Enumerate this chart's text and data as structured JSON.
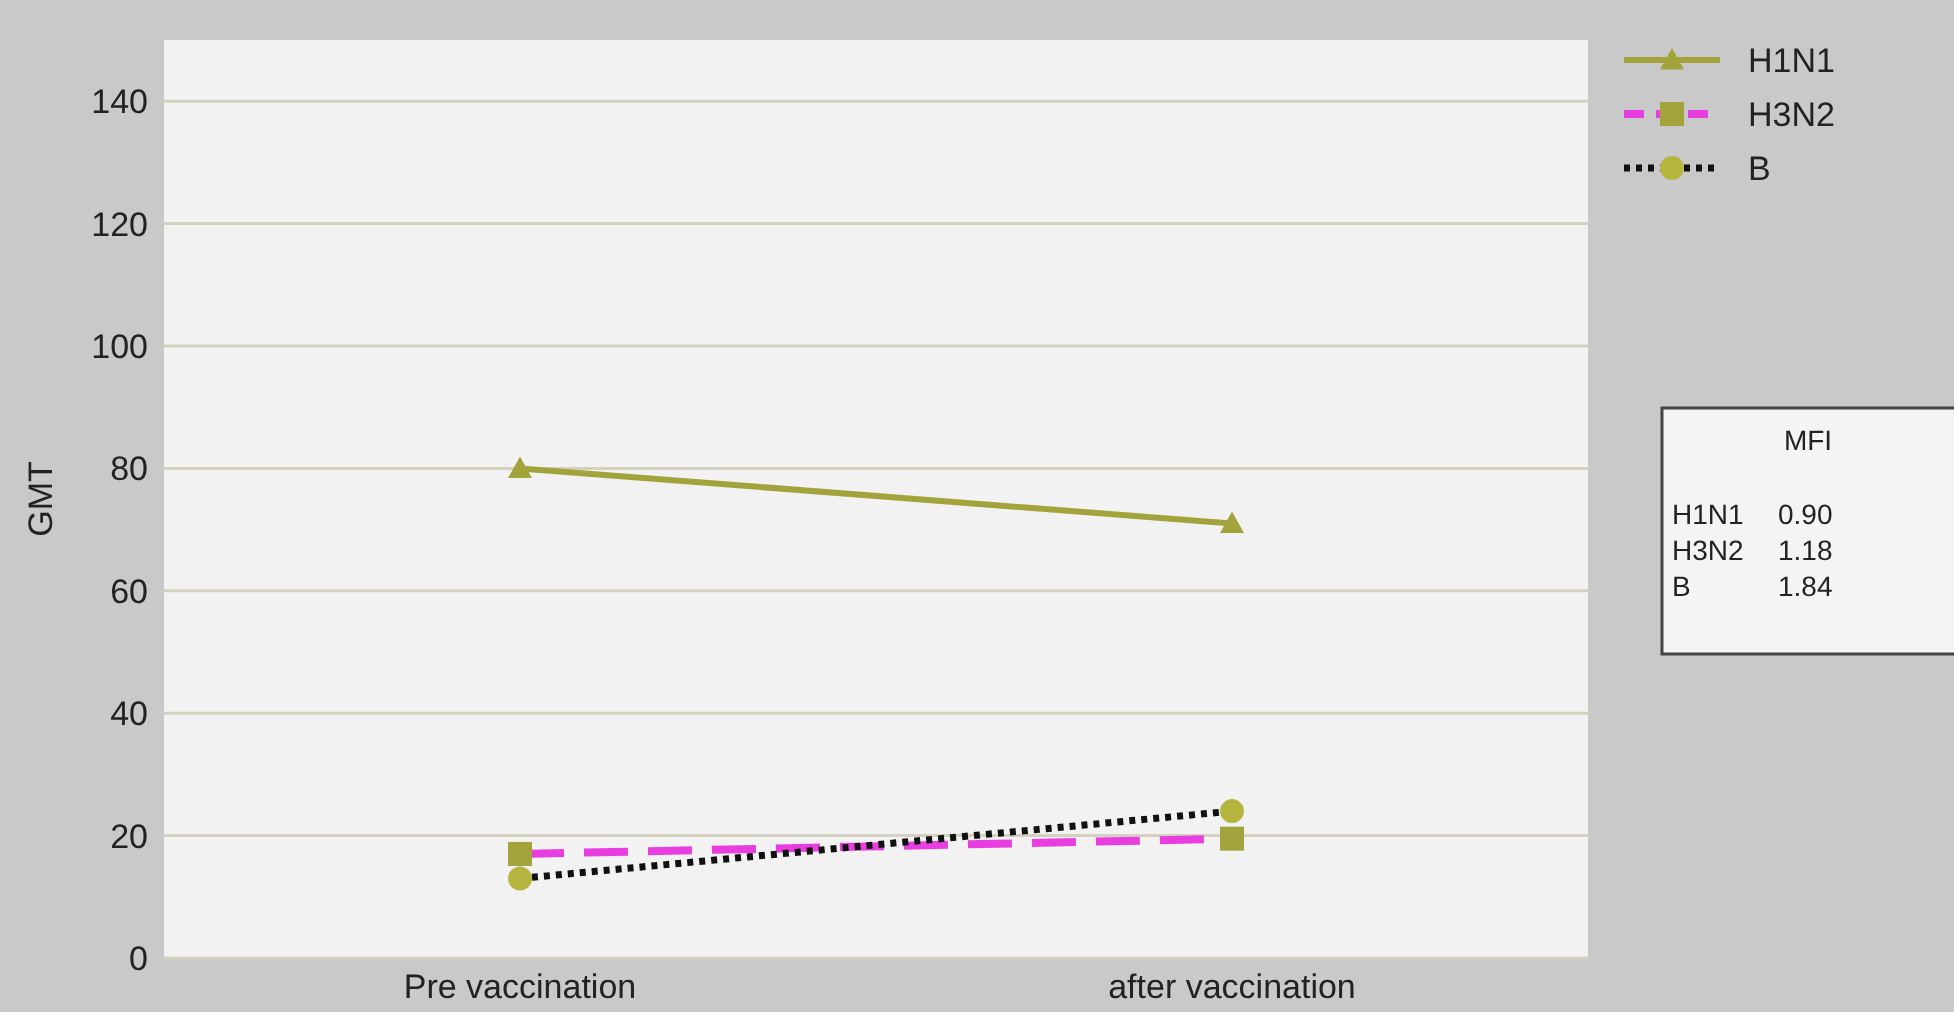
{
  "chart_data": {
    "type": "line",
    "ylabel": "GMT",
    "categories": [
      "Pre vaccination",
      "after vaccination"
    ],
    "ylim": [
      0,
      150
    ],
    "yticks": [
      0,
      20,
      40,
      60,
      80,
      100,
      120,
      140
    ],
    "grid": "y",
    "legend": "top right",
    "series": [
      {
        "name": "H1N1",
        "color": "#a3a33c",
        "colors": [
          "#a3a33c",
          "#a3a33c"
        ],
        "marker": "triangle",
        "line_style": "solid",
        "values": [
          80,
          71
        ]
      },
      {
        "name": "H3N2",
        "color": "#e83ee0",
        "colors": [
          "#a3a33c",
          "#a3a33c"
        ],
        "marker": "square",
        "line_style": "dashed",
        "values": [
          17,
          19.5
        ]
      },
      {
        "name": "B",
        "color": "#111111",
        "colors": [
          "#b5b540",
          "#b5b540"
        ],
        "marker": "circle",
        "line_style": "dotted",
        "values": [
          13,
          24
        ]
      }
    ],
    "annotations": [
      "MFI",
      "H1N1 0.90",
      "H3N2 1.18",
      "B 1.84"
    ]
  }
}
